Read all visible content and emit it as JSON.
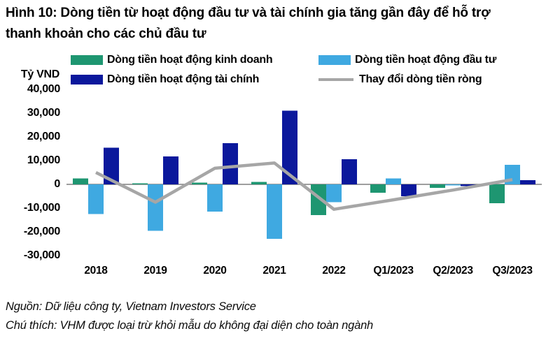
{
  "title": {
    "line1": "Hình 10: Dòng tiền từ hoạt động đầu tư và tài chính gia tăng gần đây để hỗ trợ",
    "line2": "thanh khoản cho các chủ đầu tư"
  },
  "y_axis": {
    "unit": "Tỷ VND",
    "ticks": [
      {
        "label": "40,000",
        "value": 40000
      },
      {
        "label": "30,000",
        "value": 30000
      },
      {
        "label": "20,000",
        "value": 20000
      },
      {
        "label": "10,000",
        "value": 10000
      },
      {
        "label": "0",
        "value": 0
      },
      {
        "label": "-10,000",
        "value": -10000
      },
      {
        "label": "-20,000",
        "value": -20000
      },
      {
        "label": "-30,000",
        "value": -30000
      }
    ]
  },
  "chart_data": {
    "type": "bar",
    "subtype": "grouped bars with net cash flow line overlay",
    "title": "Hình 10: Dòng tiền từ hoạt động đầu tư và tài chính gia tăng gần đây để hỗ trợ thanh khoản cho các chủ đầu tư",
    "ylabel": "Tỷ VND",
    "xlabel": "",
    "ylim": [
      -30000,
      40000
    ],
    "ytick_step": 10000,
    "grid": false,
    "legend_position": "top",
    "categories": [
      "2018",
      "2019",
      "2020",
      "2021",
      "2022",
      "Q1/2023",
      "Q2/2023",
      "Q3/2023"
    ],
    "series": [
      {
        "name": "Dòng tiền hoạt động kinh doanh",
        "type": "bar",
        "color": "#1E9671",
        "values": [
          2500,
          500,
          800,
          1000,
          -13000,
          -3500,
          -1500,
          -8000
        ]
      },
      {
        "name": "Dòng tiền hoạt động đầu tư",
        "type": "bar",
        "color": "#3FA9E1",
        "values": [
          -12500,
          -19500,
          -11500,
          -23000,
          -7500,
          2500,
          -500,
          8200
        ]
      },
      {
        "name": "Dòng tiền hoạt động tài chính",
        "type": "bar",
        "color": "#0B189C",
        "values": [
          15500,
          11800,
          17300,
          31000,
          10600,
          -5000,
          -700,
          1800
        ]
      },
      {
        "name": "Thay đổi dòng tiền ròng",
        "type": "line",
        "color": "#A6A6A6",
        "values": [
          5000,
          -7500,
          6800,
          9000,
          -10500,
          -6500,
          -2400,
          2000
        ]
      }
    ]
  },
  "footer": {
    "source": "Nguồn: Dữ liệu công ty, Vietnam Investors Service",
    "note": "Chú thích: VHM được loại trừ khỏi mẫu do không đại diện cho toàn ngành"
  },
  "colors": {
    "axis_line": "#7F7F7F",
    "text": "#000000"
  }
}
